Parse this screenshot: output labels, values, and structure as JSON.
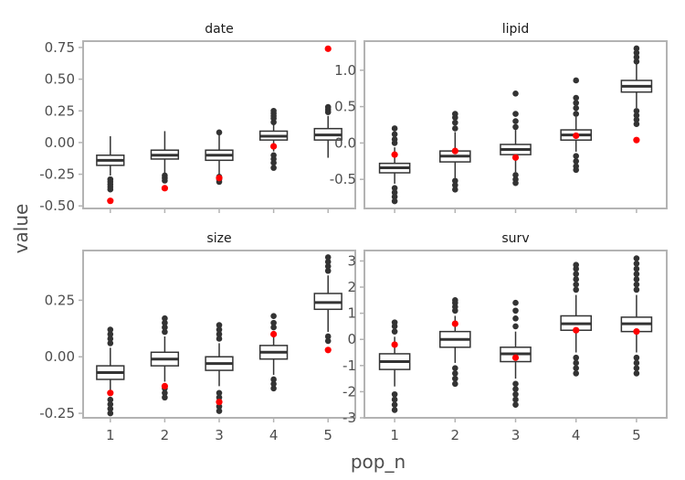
{
  "xlabel": "pop_n",
  "ylabel": "value",
  "colors": {
    "box": "#333333",
    "outlier": "#333333",
    "observed": "#ff0000",
    "panel_border": "#b3b3b3"
  },
  "chart_data": [
    {
      "type": "box",
      "title": "date",
      "categories": [
        "1",
        "2",
        "3",
        "4",
        "5"
      ],
      "ylim": [
        -0.52,
        0.8
      ],
      "yticks": [
        -0.5,
        -0.25,
        0.0,
        0.25,
        0.5,
        0.75
      ],
      "ytick_labels": [
        "-0.50",
        "-0.25",
        "0.00",
        "0.25",
        "0.50",
        "0.75"
      ],
      "boxes": [
        {
          "min": -0.26,
          "q1": -0.18,
          "median": -0.14,
          "q3": -0.1,
          "max": 0.05,
          "outliers": [
            -0.29,
            -0.31,
            -0.33,
            -0.35,
            -0.37
          ]
        },
        {
          "min": -0.24,
          "q1": -0.13,
          "median": -0.1,
          "q3": -0.06,
          "max": 0.09,
          "outliers": [
            -0.26,
            -0.28,
            -0.3
          ]
        },
        {
          "min": -0.25,
          "q1": -0.14,
          "median": -0.1,
          "q3": -0.06,
          "max": 0.1,
          "outliers": [
            -0.27,
            -0.29,
            -0.31,
            0.08
          ]
        },
        {
          "min": -0.07,
          "q1": 0.02,
          "median": 0.05,
          "q3": 0.09,
          "max": 0.14,
          "outliers": [
            -0.1,
            -0.13,
            -0.16,
            -0.2,
            0.16,
            0.19,
            0.21,
            0.23,
            0.25
          ]
        },
        {
          "min": -0.12,
          "q1": 0.02,
          "median": 0.06,
          "q3": 0.11,
          "max": 0.21,
          "outliers": [
            0.24,
            0.26,
            0.28
          ]
        }
      ],
      "observed": [
        -0.46,
        -0.36,
        -0.28,
        -0.03,
        0.74
      ]
    },
    {
      "type": "box",
      "title": "lipid",
      "categories": [
        "1",
        "2",
        "3",
        "4",
        "5"
      ],
      "ylim": [
        -0.9,
        1.4
      ],
      "yticks": [
        -0.5,
        0.0,
        0.5,
        1.0
      ],
      "ytick_labels": [
        "-0.5",
        "0.0",
        "0.5",
        "1.0"
      ],
      "boxes": [
        {
          "min": -0.56,
          "q1": -0.41,
          "median": -0.34,
          "q3": -0.28,
          "max": -0.06,
          "outliers": [
            -0.62,
            -0.68,
            -0.74,
            -0.8,
            0.0,
            0.05,
            0.12,
            0.2
          ]
        },
        {
          "min": -0.48,
          "q1": -0.26,
          "median": -0.18,
          "q3": -0.11,
          "max": 0.15,
          "outliers": [
            -0.52,
            -0.58,
            -0.64,
            0.2,
            0.28,
            0.35,
            0.4
          ]
        },
        {
          "min": -0.4,
          "q1": -0.16,
          "median": -0.09,
          "q3": -0.02,
          "max": 0.18,
          "outliers": [
            -0.44,
            -0.5,
            -0.55,
            0.22,
            0.3,
            0.4,
            0.68
          ]
        },
        {
          "min": -0.12,
          "q1": 0.04,
          "median": 0.11,
          "q3": 0.18,
          "max": 0.36,
          "outliers": [
            -0.18,
            -0.25,
            -0.32,
            -0.37,
            0.4,
            0.48,
            0.55,
            0.62,
            0.86
          ]
        },
        {
          "min": 0.48,
          "q1": 0.7,
          "median": 0.78,
          "q3": 0.86,
          "max": 1.08,
          "outliers": [
            0.44,
            0.38,
            0.32,
            0.26,
            1.12,
            1.18,
            1.24,
            1.3
          ]
        }
      ],
      "observed": [
        -0.16,
        -0.11,
        -0.2,
        0.1,
        0.04
      ]
    },
    {
      "type": "box",
      "title": "size",
      "categories": [
        "1",
        "2",
        "3",
        "4",
        "5"
      ],
      "ylim": [
        -0.27,
        0.47
      ],
      "yticks": [
        -0.25,
        0.0,
        0.25
      ],
      "ytick_labels": [
        "-0.25",
        "0.00",
        "0.25"
      ],
      "boxes": [
        {
          "min": -0.17,
          "q1": -0.1,
          "median": -0.07,
          "q3": -0.04,
          "max": 0.04,
          "outliers": [
            -0.19,
            -0.21,
            -0.23,
            -0.25,
            0.06,
            0.08,
            0.1,
            0.12
          ]
        },
        {
          "min": -0.11,
          "q1": -0.04,
          "median": -0.01,
          "q3": 0.02,
          "max": 0.09,
          "outliers": [
            -0.14,
            -0.16,
            -0.18,
            0.11,
            0.13,
            0.15,
            0.17
          ]
        },
        {
          "min": -0.13,
          "q1": -0.06,
          "median": -0.03,
          "q3": 0.0,
          "max": 0.06,
          "outliers": [
            -0.16,
            -0.18,
            -0.2,
            -0.22,
            -0.24,
            0.08,
            0.1,
            0.12,
            0.14
          ]
        },
        {
          "min": -0.08,
          "q1": -0.01,
          "median": 0.02,
          "q3": 0.05,
          "max": 0.11,
          "outliers": [
            -0.1,
            -0.12,
            -0.14,
            0.13,
            0.15,
            0.18
          ]
        },
        {
          "min": 0.11,
          "q1": 0.21,
          "median": 0.24,
          "q3": 0.28,
          "max": 0.36,
          "outliers": [
            0.09,
            0.07,
            0.38,
            0.4,
            0.42,
            0.44
          ]
        }
      ],
      "observed": [
        -0.16,
        -0.13,
        -0.2,
        0.1,
        0.03
      ]
    },
    {
      "type": "box",
      "title": "surv",
      "categories": [
        "1",
        "2",
        "3",
        "4",
        "5"
      ],
      "ylim": [
        -3.0,
        3.4
      ],
      "yticks": [
        -3,
        -2,
        -1,
        0,
        1,
        2,
        3
      ],
      "ytick_labels": [
        "-3",
        "-2",
        "-1",
        "0",
        "1",
        "2",
        "3"
      ],
      "boxes": [
        {
          "min": -1.8,
          "q1": -1.15,
          "median": -0.85,
          "q3": -0.55,
          "max": 0.1,
          "outliers": [
            -2.1,
            -2.3,
            -2.5,
            -2.7,
            0.3,
            0.5,
            0.65
          ]
        },
        {
          "min": -0.9,
          "q1": -0.3,
          "median": 0.0,
          "q3": 0.3,
          "max": 0.9,
          "outliers": [
            -1.1,
            -1.3,
            -1.5,
            -1.7,
            1.1,
            1.25,
            1.4,
            1.5
          ]
        },
        {
          "min": -1.5,
          "q1": -0.85,
          "median": -0.55,
          "q3": -0.3,
          "max": 0.3,
          "outliers": [
            -1.7,
            -1.9,
            -2.1,
            -2.3,
            -2.5,
            0.5,
            0.8,
            1.1,
            1.4
          ]
        },
        {
          "min": -0.5,
          "q1": 0.35,
          "median": 0.6,
          "q3": 0.9,
          "max": 1.7,
          "outliers": [
            -0.7,
            -0.9,
            -1.1,
            -1.3,
            1.9,
            2.1,
            2.3,
            2.5,
            2.7,
            2.85
          ]
        },
        {
          "min": -0.5,
          "q1": 0.3,
          "median": 0.6,
          "q3": 0.85,
          "max": 1.7,
          "outliers": [
            -0.7,
            -0.9,
            -1.1,
            -1.3,
            1.9,
            2.1,
            2.3,
            2.5,
            2.7,
            2.9,
            3.1
          ]
        }
      ],
      "observed": [
        -0.2,
        0.6,
        -0.7,
        0.35,
        0.3
      ]
    }
  ]
}
